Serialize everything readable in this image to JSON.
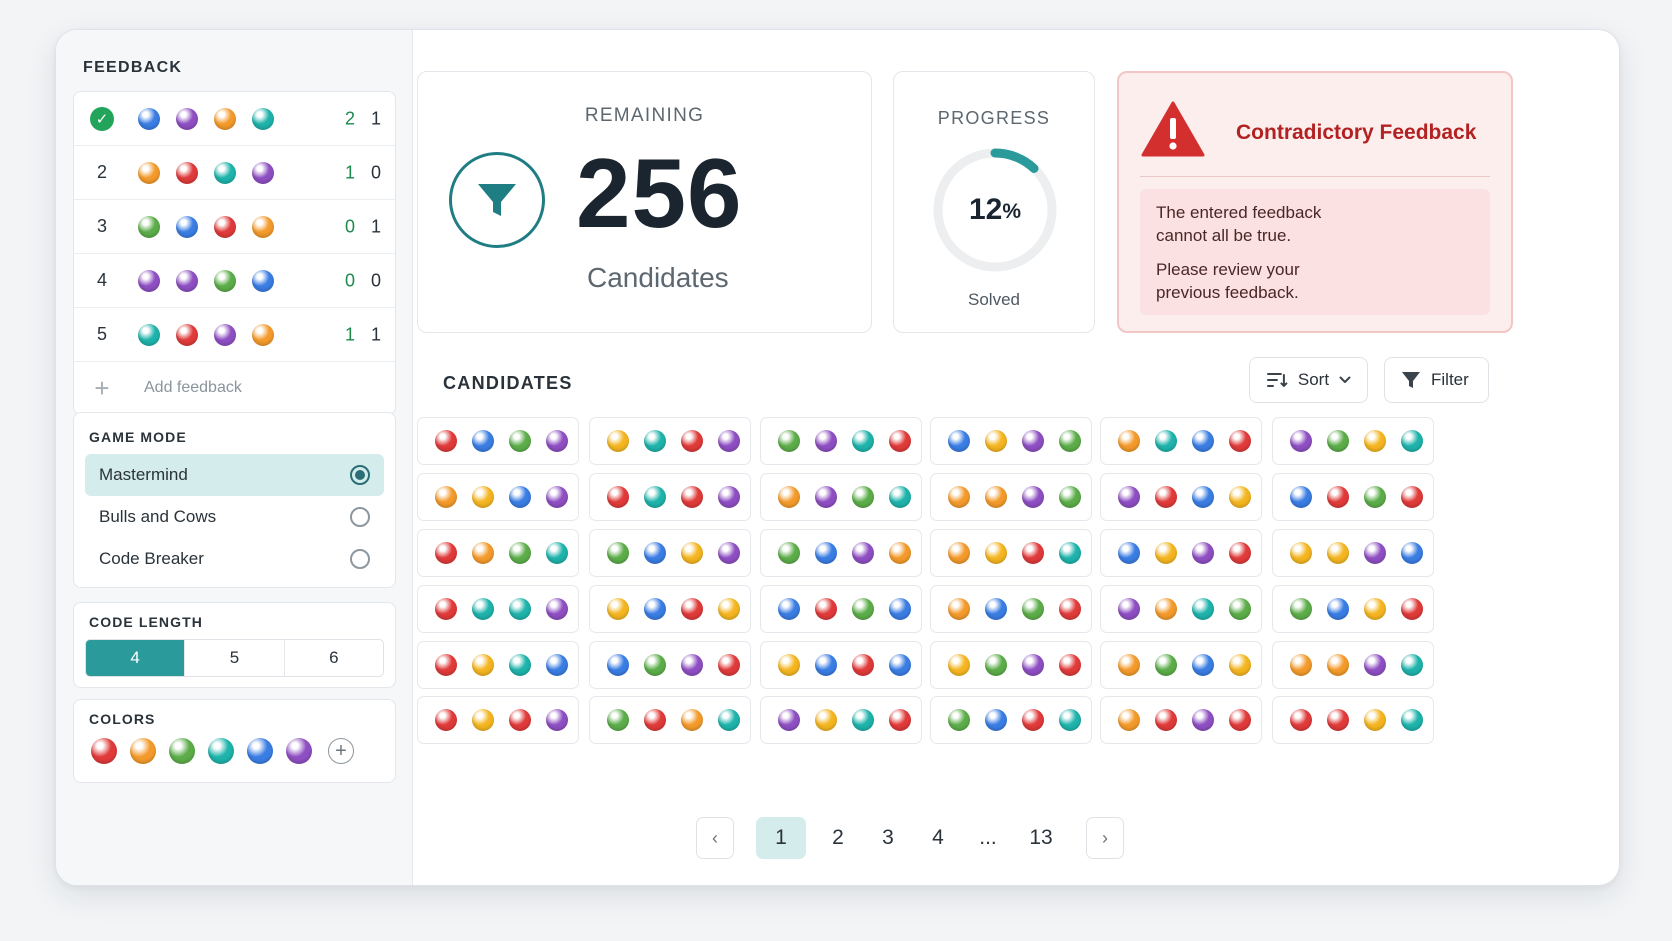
{
  "sidebar": {
    "feedback_title": "FEEDBACK",
    "feedback_rows": [
      {
        "index": "",
        "solved": true,
        "pegs": [
          "blue",
          "purple",
          "orange",
          "teal"
        ],
        "black": "2",
        "white": "1"
      },
      {
        "index": "2",
        "solved": false,
        "pegs": [
          "orange",
          "red",
          "teal",
          "purple"
        ],
        "black": "1",
        "white": "0"
      },
      {
        "index": "3",
        "solved": false,
        "pegs": [
          "green",
          "blue",
          "red",
          "orange"
        ],
        "black": "0",
        "white": "1"
      },
      {
        "index": "4",
        "solved": false,
        "pegs": [
          "purple",
          "purple",
          "green",
          "blue"
        ],
        "black": "0",
        "white": "0"
      },
      {
        "index": "5",
        "solved": false,
        "pegs": [
          "teal",
          "red",
          "purple",
          "orange"
        ],
        "black": "1",
        "white": "1"
      }
    ],
    "add_feedback_label": "Add feedback",
    "game_mode_title": "GAME MODE",
    "game_modes": [
      {
        "label": "Mastermind",
        "selected": true
      },
      {
        "label": "Bulls and Cows",
        "selected": false
      },
      {
        "label": "Code Breaker",
        "selected": false
      }
    ],
    "code_length_title": "CODE LENGTH",
    "code_lengths": [
      {
        "label": "4",
        "selected": true
      },
      {
        "label": "5",
        "selected": false
      },
      {
        "label": "6",
        "selected": false
      }
    ],
    "colors_title": "COLORS",
    "palette": [
      "red",
      "orange",
      "green",
      "teal",
      "blue",
      "purple"
    ]
  },
  "colors": {
    "red": "#e03a3a",
    "orange": "#f39a2b",
    "yellow": "#f4b520",
    "green": "#5cad4a",
    "teal": "#1eb3ab",
    "blue": "#3a7de3",
    "purple": "#8e4fc2",
    "accent": "#2a9a9a",
    "error": "#c62b2b"
  },
  "remaining": {
    "title": "REMAINING",
    "count": "256",
    "caption": "Candidates",
    "icon": "filter-icon"
  },
  "progress": {
    "title": "PROGRESS",
    "percent_value": "12",
    "percent_sign": "%",
    "fraction": 0.12,
    "caption": "Solved"
  },
  "alert": {
    "icon": "warning-icon",
    "title": "Contradictory Feedback",
    "line1a": "The entered feedback",
    "line1b": "cannot all be true.",
    "line2a": "Please review your",
    "line2b": "previous feedback."
  },
  "candidates": {
    "title": "CANDIDATES",
    "sort_label": "Sort",
    "filter_label": "Filter",
    "grid": [
      [
        [
          "red",
          "blue",
          "green",
          "purple"
        ],
        [
          "yellow",
          "teal",
          "red",
          "purple"
        ],
        [
          "green",
          "purple",
          "teal",
          "red"
        ],
        [
          "blue",
          "yellow",
          "purple",
          "green"
        ],
        [
          "orange",
          "teal",
          "blue",
          "red"
        ],
        [
          "purple",
          "green",
          "yellow",
          "teal"
        ]
      ],
      [
        [
          "orange",
          "yellow",
          "blue",
          "purple"
        ],
        [
          "red",
          "teal",
          "red",
          "purple"
        ],
        [
          "orange",
          "purple",
          "green",
          "teal"
        ],
        [
          "orange",
          "orange",
          "purple",
          "green"
        ],
        [
          "purple",
          "red",
          "blue",
          "yellow"
        ],
        [
          "blue",
          "red",
          "green",
          "red"
        ]
      ],
      [
        [
          "red",
          "orange",
          "green",
          "teal"
        ],
        [
          "green",
          "blue",
          "yellow",
          "purple"
        ],
        [
          "green",
          "blue",
          "purple",
          "orange"
        ],
        [
          "orange",
          "yellow",
          "red",
          "teal"
        ],
        [
          "blue",
          "yellow",
          "purple",
          "red"
        ],
        [
          "yellow",
          "yellow",
          "purple",
          "blue"
        ]
      ],
      [
        [
          "red",
          "teal",
          "teal",
          "purple"
        ],
        [
          "yellow",
          "blue",
          "red",
          "yellow"
        ],
        [
          "blue",
          "red",
          "green",
          "blue"
        ],
        [
          "orange",
          "blue",
          "green",
          "red"
        ],
        [
          "purple",
          "orange",
          "teal",
          "green"
        ],
        [
          "green",
          "blue",
          "yellow",
          "red"
        ]
      ],
      [
        [
          "red",
          "yellow",
          "teal",
          "blue"
        ],
        [
          "blue",
          "green",
          "purple",
          "red"
        ],
        [
          "yellow",
          "blue",
          "red",
          "blue"
        ],
        [
          "yellow",
          "green",
          "purple",
          "red"
        ],
        [
          "orange",
          "green",
          "blue",
          "yellow"
        ],
        [
          "orange",
          "orange",
          "purple",
          "teal"
        ]
      ],
      [
        [
          "red",
          "yellow",
          "red",
          "purple"
        ],
        [
          "green",
          "red",
          "orange",
          "teal"
        ],
        [
          "purple",
          "yellow",
          "teal",
          "red"
        ],
        [
          "green",
          "blue",
          "red",
          "teal"
        ],
        [
          "orange",
          "red",
          "purple",
          "red"
        ],
        [
          "red",
          "red",
          "yellow",
          "teal"
        ]
      ]
    ]
  },
  "pagination": {
    "prev": "‹",
    "pages": [
      "1",
      "2",
      "3",
      "4"
    ],
    "ellipsis": "...",
    "last": "13",
    "next": "›",
    "current": "1"
  }
}
